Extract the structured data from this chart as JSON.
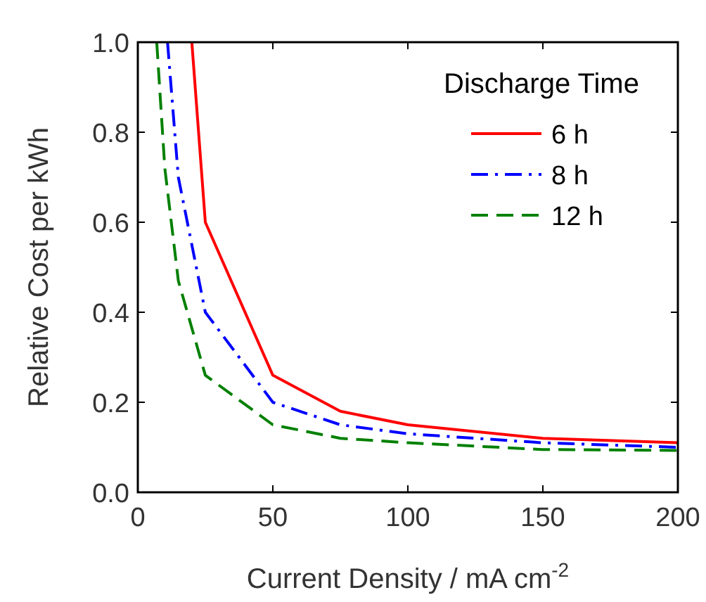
{
  "chart_data": {
    "type": "line",
    "xlabel": "Current Density / mA cm$^{-2}$",
    "ylabel": "Relative Cost per kWh",
    "legend_title": "Discharge Time",
    "series": [
      {
        "name": "6 h",
        "color": "#ff0000",
        "line_style": "solid",
        "x": [
          20,
          25,
          50,
          75,
          100,
          150,
          200
        ],
        "values": [
          1.0,
          0.6,
          0.26,
          0.18,
          0.15,
          0.12,
          0.11
        ]
      },
      {
        "name": "8 h",
        "color": "#0000ff",
        "line_style": "dashdot",
        "x": [
          11,
          15,
          25,
          50,
          75,
          100,
          150,
          200
        ],
        "values": [
          1.0,
          0.7,
          0.4,
          0.2,
          0.15,
          0.13,
          0.11,
          0.1
        ]
      },
      {
        "name": "12 h",
        "color": "#008000",
        "line_style": "dashed",
        "x": [
          7,
          10,
          15,
          25,
          50,
          75,
          100,
          150,
          200
        ],
        "values": [
          1.0,
          0.72,
          0.47,
          0.26,
          0.15,
          0.12,
          0.11,
          0.095,
          0.093
        ]
      }
    ],
    "xlim": [
      0,
      200
    ],
    "xticks": [
      0,
      50,
      100,
      150,
      200
    ],
    "ylim": [
      0,
      1
    ],
    "yticks": [
      {
        "value": 0,
        "label": "0.0"
      },
      {
        "value": 0.2,
        "label": "0.2"
      },
      {
        "value": 0.4,
        "label": "0.4"
      },
      {
        "value": 0.6,
        "label": "0.6"
      },
      {
        "value": 0.8,
        "label": "0.8"
      },
      {
        "value": 1,
        "label": "1.0"
      }
    ],
    "grid": false,
    "legend": "top right"
  }
}
